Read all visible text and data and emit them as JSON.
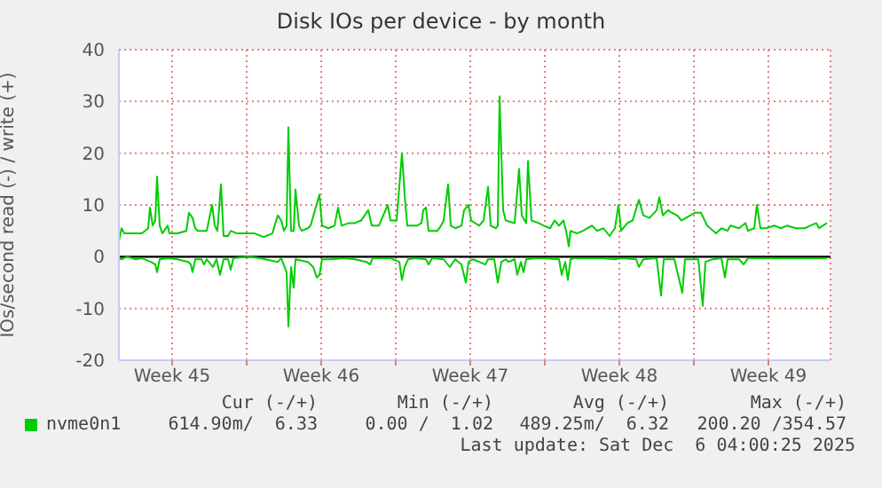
{
  "chart_data": {
    "type": "line",
    "title": "Disk IOs per device - by month",
    "ylabel": "IOs/second read (-) / write (+)",
    "xlim": [
      "2025-11-04T00:00",
      "2025-12-07T10:00"
    ],
    "xticks": [
      {
        "value": "2025-11-06T12:00",
        "label": "Week 45"
      },
      {
        "value": "2025-11-10T00:00",
        "label": null
      },
      {
        "value": "2025-11-13T12:00",
        "label": "Week 46"
      },
      {
        "value": "2025-11-17T00:00",
        "label": null
      },
      {
        "value": "2025-11-20T12:00",
        "label": "Week 47"
      },
      {
        "value": "2025-11-24T00:00",
        "label": null
      },
      {
        "value": "2025-11-27T12:00",
        "label": "Week 48"
      },
      {
        "value": "2025-12-01T00:00",
        "label": null
      },
      {
        "value": "2025-12-04T12:00",
        "label": "Week 49"
      }
    ],
    "ylim": [
      -20,
      40
    ],
    "yticks": [
      -20,
      -10,
      0,
      10,
      20,
      30,
      40
    ],
    "grid": true,
    "legend": "bottom",
    "ref_lines": [
      {
        "axis": "y",
        "value": 0,
        "color": "#000000"
      }
    ],
    "series": [
      {
        "name": "nvme0n1",
        "color": "#00cc00",
        "x": [
          "2025-11-04T00:00",
          "2025-11-04T03:00",
          "2025-11-04T06:00",
          "2025-11-05T02:00",
          "2025-11-05T09:00",
          "2025-11-05T11:00",
          "2025-11-05T14:00",
          "2025-11-05T17:00",
          "2025-11-05T19:00",
          "2025-11-05T22:00",
          "2025-11-06T01:00",
          "2025-11-06T07:00",
          "2025-11-06T09:00",
          "2025-11-06T18:00",
          "2025-11-07T04:00",
          "2025-11-07T07:00",
          "2025-11-07T11:00",
          "2025-11-07T14:00",
          "2025-11-07T17:00",
          "2025-11-08T03:00",
          "2025-11-08T09:00",
          "2025-11-08T12:00",
          "2025-11-08T15:00",
          "2025-11-08T19:00",
          "2025-11-08T22:00",
          "2025-11-09T03:00",
          "2025-11-09T06:00",
          "2025-11-09T13:00",
          "2025-11-10T09:00",
          "2025-11-10T19:00",
          "2025-11-11T05:00",
          "2025-11-11T11:00",
          "2025-11-11T15:00",
          "2025-11-11T18:00",
          "2025-11-11T21:00",
          "2025-11-11T23:00",
          "2025-11-12T02:00",
          "2025-11-12T05:00",
          "2025-11-12T07:00",
          "2025-11-12T11:00",
          "2025-11-12T14:00",
          "2025-11-12T21:00",
          "2025-11-13T00:00",
          "2025-11-13T10:00",
          "2025-11-13T13:00",
          "2025-11-13T20:00",
          "2025-11-14T03:00",
          "2025-11-14T07:00",
          "2025-11-14T11:00",
          "2025-11-14T19:00",
          "2025-11-15T02:00",
          "2025-11-15T09:00",
          "2025-11-15T17:00",
          "2025-11-15T21:00",
          "2025-11-16T05:00",
          "2025-11-16T15:00",
          "2025-11-16T18:00",
          "2025-11-17T01:00",
          "2025-11-17T07:00",
          "2025-11-17T10:00",
          "2025-11-17T13:00",
          "2025-11-18T00:00",
          "2025-11-18T05:00",
          "2025-11-18T07:00",
          "2025-11-18T10:00",
          "2025-11-18T13:00",
          "2025-11-18T23:00",
          "2025-11-19T03:00",
          "2025-11-19T06:00",
          "2025-11-19T11:00",
          "2025-11-19T14:00",
          "2025-11-19T19:00",
          "2025-11-20T02:00",
          "2025-11-20T05:00",
          "2025-11-20T10:00",
          "2025-11-20T13:00",
          "2025-11-20T22:00",
          "2025-11-21T03:00",
          "2025-11-21T08:00",
          "2025-11-21T11:00",
          "2025-11-21T17:00",
          "2025-11-21T19:00",
          "2025-11-21T21:00",
          "2025-11-22T01:00",
          "2025-11-22T04:00",
          "2025-11-22T14:00",
          "2025-11-22T19:00",
          "2025-11-22T22:00",
          "2025-11-23T03:00",
          "2025-11-23T05:00",
          "2025-11-23T09:00",
          "2025-11-23T17:00",
          "2025-11-23T23:00",
          "2025-11-24T06:00",
          "2025-11-24T11:00",
          "2025-11-24T16:00",
          "2025-11-24T21:00",
          "2025-11-25T00:00",
          "2025-11-25T03:00",
          "2025-11-25T05:00",
          "2025-11-25T12:00",
          "2025-11-25T19:00",
          "2025-11-26T05:00",
          "2025-11-26T11:00",
          "2025-11-26T18:00",
          "2025-11-27T01:00",
          "2025-11-27T07:00",
          "2025-11-27T11:00",
          "2025-11-27T14:00",
          "2025-11-27T21:00",
          "2025-11-28T03:00",
          "2025-11-28T10:00",
          "2025-11-28T15:00",
          "2025-11-28T22:00",
          "2025-11-29T06:00",
          "2025-11-29T09:00",
          "2025-11-29T13:00",
          "2025-11-29T19:00",
          "2025-11-29T23:00",
          "2025-11-30T05:00",
          "2025-11-30T10:00",
          "2025-11-30T15:00",
          "2025-12-01T01:00",
          "2025-12-01T08:00",
          "2025-12-01T15:00",
          "2025-12-02T01:00",
          "2025-12-02T07:00",
          "2025-12-02T14:00",
          "2025-12-02T17:00",
          "2025-12-03T03:00",
          "2025-12-03T10:00",
          "2025-12-03T13:00",
          "2025-12-03T20:00",
          "2025-12-03T23:00",
          "2025-12-04T03:00",
          "2025-12-04T09:00",
          "2025-12-04T19:00",
          "2025-12-05T02:00",
          "2025-12-05T09:00",
          "2025-12-05T19:00",
          "2025-12-06T05:00",
          "2025-12-06T11:00",
          "2025-12-06T18:00",
          "2025-12-06T21:00",
          "2025-12-07T06:00"
        ],
        "values": [
          3,
          5.5,
          4.5,
          4.5,
          5.5,
          9.5,
          6,
          7,
          15.5,
          6,
          4.5,
          6,
          4.5,
          4.5,
          5,
          8.5,
          7.5,
          5.5,
          5,
          5,
          10,
          6,
          5,
          14,
          4,
          4,
          5,
          4.5,
          4.5,
          3.8,
          4.5,
          8,
          7,
          5,
          6,
          25,
          5,
          5,
          13,
          6,
          5,
          5.5,
          6,
          12,
          6,
          5.5,
          6,
          9.5,
          6,
          6.5,
          6.5,
          7,
          9,
          6,
          6,
          10,
          7,
          7,
          20,
          12,
          6,
          6,
          6.5,
          9,
          9.5,
          5,
          5,
          6,
          7,
          14,
          6,
          5.5,
          6,
          9,
          10,
          7,
          6,
          7,
          13.5,
          6,
          5.5,
          6,
          31,
          9,
          7,
          6.5,
          17,
          8,
          6.5,
          18.5,
          7,
          6.5,
          6,
          5.5,
          7,
          6,
          7,
          5,
          2,
          5,
          4.5,
          5,
          6,
          5,
          5.5,
          4,
          5.5,
          10,
          5,
          6.5,
          7,
          11,
          8,
          7.5,
          9,
          11.5,
          8,
          9,
          8.5,
          8,
          7,
          7.5,
          8.5,
          8.5,
          6,
          4.5,
          5.5,
          5,
          6,
          5.5,
          6.5,
          5,
          5.5,
          10,
          5.5,
          5.5,
          6,
          5.5,
          6,
          5.5,
          5.5,
          6,
          6.5,
          5.5,
          6.5
        ]
      },
      {
        "color": "#00cc00",
        "x": [
          "2025-11-04T00:00",
          "2025-11-04T03:00",
          "2025-11-04T09:00",
          "2025-11-04T19:00",
          "2025-11-05T02:00",
          "2025-11-05T12:00",
          "2025-11-05T17:00",
          "2025-11-05T19:00",
          "2025-11-05T22:00",
          "2025-11-06T08:00",
          "2025-11-06T18:00",
          "2025-11-07T06:00",
          "2025-11-07T09:00",
          "2025-11-07T11:00",
          "2025-11-07T14:00",
          "2025-11-07T21:00",
          "2025-11-08T00:00",
          "2025-11-08T03:00",
          "2025-11-08T10:00",
          "2025-11-08T14:00",
          "2025-11-08T18:00",
          "2025-11-08T22:00",
          "2025-11-09T03:00",
          "2025-11-09T06:00",
          "2025-11-09T09:00",
          "2025-11-10T02:00",
          "2025-11-10T15:00",
          "2025-11-11T11:00",
          "2025-11-11T15:00",
          "2025-11-11T21:00",
          "2025-11-11T23:00",
          "2025-11-12T02:00",
          "2025-11-12T05:00",
          "2025-11-12T07:00",
          "2025-11-12T21:00",
          "2025-11-13T03:00",
          "2025-11-13T07:00",
          "2025-11-13T10:00",
          "2025-11-13T13:00",
          "2025-11-13T23:00",
          "2025-11-14T13:00",
          "2025-11-15T02:00",
          "2025-11-15T15:00",
          "2025-11-15T19:00",
          "2025-11-15T22:00",
          "2025-11-16T18:00",
          "2025-11-17T04:00",
          "2025-11-17T07:00",
          "2025-11-17T10:00",
          "2025-11-17T14:00",
          "2025-11-17T21:00",
          "2025-11-18T10:00",
          "2025-11-18T13:00",
          "2025-11-18T17:00",
          "2025-11-19T06:00",
          "2025-11-19T13:00",
          "2025-11-19T19:00",
          "2025-11-20T02:00",
          "2025-11-20T07:00",
          "2025-11-20T10:00",
          "2025-11-20T15:00",
          "2025-11-20T22:00",
          "2025-11-21T05:00",
          "2025-11-21T08:00",
          "2025-11-21T15:00",
          "2025-11-21T19:00",
          "2025-11-21T23:00",
          "2025-11-22T04:00",
          "2025-11-22T07:00",
          "2025-11-22T14:00",
          "2025-11-22T17:00",
          "2025-11-22T21:00",
          "2025-11-23T00:00",
          "2025-11-23T03:00",
          "2025-11-23T13:00",
          "2025-11-23T23:00",
          "2025-11-24T16:00",
          "2025-11-24T19:00",
          "2025-11-24T23:00",
          "2025-11-25T02:00",
          "2025-11-25T05:00",
          "2025-11-25T09:00",
          "2025-11-26T18:00",
          "2025-11-27T07:00",
          "2025-11-27T14:00",
          "2025-11-28T07:00",
          "2025-11-28T10:00",
          "2025-11-28T15:00",
          "2025-11-29T06:00",
          "2025-11-29T11:00",
          "2025-11-29T14:00",
          "2025-11-30T02:00",
          "2025-11-30T11:00",
          "2025-11-30T14:00",
          "2025-12-01T05:00",
          "2025-12-01T10:00",
          "2025-12-01T13:00",
          "2025-12-01T21:00",
          "2025-12-02T07:00",
          "2025-12-02T11:00",
          "2025-12-02T14:00",
          "2025-12-03T03:00",
          "2025-12-03T08:00",
          "2025-12-03T13:00",
          "2025-12-05T02:00",
          "2025-12-07T06:00"
        ],
        "values": [
          -0.3,
          -0.5,
          0,
          -0.5,
          -0.3,
          -1,
          -1.5,
          -3,
          -0.5,
          -0.3,
          -0.5,
          -1,
          -1.5,
          -3,
          -0.5,
          -0.5,
          -1.5,
          -0.5,
          -2,
          -0.5,
          -3.5,
          -0.5,
          -0.5,
          -2.5,
          -0.3,
          0,
          -0.3,
          -1,
          -0.3,
          -3,
          -13.5,
          -2,
          -6,
          -0.5,
          -1,
          -2,
          -4,
          -3.5,
          -0.5,
          -0.5,
          -0.3,
          -0.5,
          -1,
          -1.5,
          -0.3,
          -0.3,
          -1,
          -4.5,
          -2,
          -0.5,
          -0.3,
          -0.5,
          -1.5,
          -0.3,
          -0.5,
          -2,
          -0.5,
          -1.5,
          -5,
          -1,
          -0.5,
          -1,
          -1.5,
          -0.5,
          -0.5,
          -5,
          -1,
          -0.5,
          -1,
          -0.5,
          -3.5,
          -1,
          -3,
          -0.5,
          -0.3,
          -0.3,
          -0.5,
          -3.5,
          -1,
          -4.5,
          -0.5,
          -0.3,
          -0.3,
          -0.5,
          -0.3,
          -0.5,
          -2,
          -0.5,
          -0.3,
          -7.5,
          -0.5,
          -0.5,
          -7,
          -0.5,
          -0.5,
          -9.5,
          -1,
          -0.5,
          -0.3,
          -4,
          -0.5,
          -0.5,
          -1.5,
          -0.3,
          -0.3,
          -0.3
        ]
      }
    ],
    "annotations": [
      "Cur (-/+)",
      "Min (-/+)",
      "Avg (-/+)",
      "Max (-/+)",
      "614.90m/  6.33",
      "0.00 /  1.02",
      "489.25m/  6.32",
      "200.20 /354.57",
      "Last update: Sat Dec  6 04:00:25 2025"
    ]
  }
}
